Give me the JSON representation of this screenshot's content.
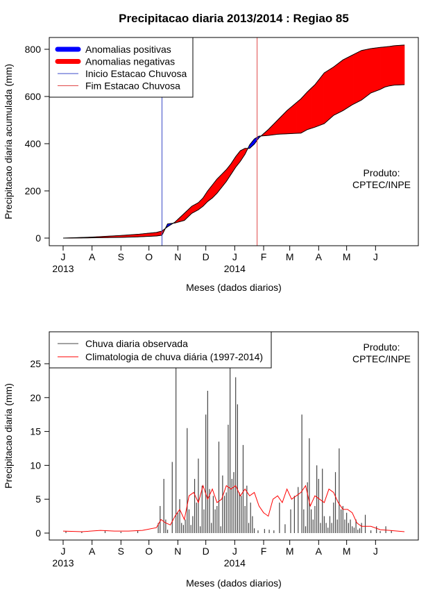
{
  "title": "Precipitacao diaria 2013/2014 : Regiao 85",
  "chart_data": [
    {
      "type": "area",
      "ylabel": "Precipitacao diaria acumulada (mm)",
      "xlabel": "Meses (dados diarios)",
      "ylim": [
        0,
        800
      ],
      "yticks": [
        0,
        200,
        400,
        600,
        800
      ],
      "month_labels": [
        "J",
        "A",
        "S",
        "O",
        "N",
        "D",
        "J",
        "F",
        "M",
        "A",
        "M",
        "J"
      ],
      "year_labels": [
        "2013",
        "2014"
      ],
      "annotation": [
        "Produto:",
        "CPTEC/INPE"
      ],
      "legend": [
        {
          "label": "Anomalias positivas",
          "color": "#0000ff",
          "style": "thick"
        },
        {
          "label": "Anomalias negativas",
          "color": "#ff0000",
          "style": "thick"
        },
        {
          "label": "Inicio Estacao Chuvosa",
          "color": "#3b4bc8",
          "style": "thin"
        },
        {
          "label": "Fim Estacao Chuvosa",
          "color": "#e04848",
          "style": "thin"
        }
      ],
      "rainy_season_start_day": 106,
      "rainy_season_end_day": 208,
      "day_count": 366,
      "observed_cumulative": {
        "day": [
          0,
          30,
          62,
          80,
          100,
          106,
          112,
          120,
          130,
          138,
          145,
          150,
          155,
          160,
          165,
          170,
          175,
          180,
          185,
          190,
          195,
          200,
          205,
          210,
          220,
          230,
          240,
          255,
          262,
          270,
          280,
          290,
          300,
          310,
          320,
          330,
          340,
          345,
          350,
          355,
          366
        ],
        "value": [
          0,
          1,
          3,
          5,
          9,
          12,
          60,
          64,
          75,
          105,
          120,
          135,
          155,
          170,
          190,
          215,
          240,
          270,
          300,
          325,
          355,
          395,
          420,
          432,
          435,
          440,
          442,
          445,
          460,
          470,
          485,
          520,
          540,
          565,
          585,
          615,
          630,
          640,
          645,
          648,
          650
        ]
      },
      "climatology_cumulative": {
        "day": [
          0,
          30,
          62,
          80,
          100,
          106,
          112,
          120,
          130,
          138,
          145,
          150,
          155,
          160,
          165,
          170,
          175,
          180,
          185,
          190,
          195,
          200,
          205,
          210,
          220,
          230,
          240,
          255,
          262,
          270,
          280,
          290,
          300,
          310,
          320,
          330,
          340,
          345,
          350,
          355,
          366
        ],
        "value": [
          0,
          4,
          11,
          16,
          24,
          30,
          48,
          68,
          105,
          135,
          150,
          170,
          200,
          225,
          250,
          270,
          290,
          315,
          345,
          370,
          380,
          380,
          398,
          425,
          460,
          500,
          540,
          590,
          620,
          650,
          700,
          725,
          755,
          775,
          795,
          803,
          808,
          810,
          812,
          815,
          818
        ]
      }
    },
    {
      "type": "bar",
      "ylabel": "Precipitacao diaria (mm)",
      "xlabel": "Meses (dados diarios)",
      "ylim": [
        0,
        28
      ],
      "yticks": [
        0,
        5,
        10,
        15,
        20,
        25
      ],
      "month_labels": [
        "J",
        "A",
        "S",
        "O",
        "N",
        "D",
        "J",
        "F",
        "M",
        "A",
        "M",
        "J"
      ],
      "year_labels": [
        "2013",
        "2014"
      ],
      "annotation": [
        "Produto:",
        "CPTEC/INPE"
      ],
      "legend": [
        {
          "label": "Chuva diaria observada",
          "color": "#444444",
          "style": "thin"
        },
        {
          "label": "Climatologia de chuva diária (1997-2014)",
          "color": "#ff0000",
          "style": "thin"
        }
      ],
      "observed_daily": {
        "day": [
          3,
          20,
          45,
          62,
          80,
          102,
          104,
          108,
          110,
          112,
          117,
          121,
          123,
          125,
          127,
          129,
          131,
          133,
          135,
          137,
          139,
          141,
          143,
          145,
          147,
          149,
          151,
          153,
          155,
          157,
          159,
          161,
          163,
          165,
          167,
          169,
          171,
          173,
          175,
          177,
          179,
          181,
          183,
          185,
          187,
          189,
          191,
          193,
          195,
          197,
          199,
          201,
          203,
          205,
          209,
          216,
          221,
          226,
          232,
          238,
          244,
          248,
          252,
          256,
          258,
          260,
          262,
          264,
          266,
          268,
          270,
          272,
          274,
          276,
          278,
          280,
          282,
          284,
          286,
          288,
          290,
          292,
          294,
          296,
          298,
          300,
          302,
          304,
          306,
          308,
          310,
          312,
          314,
          316,
          318,
          320,
          324,
          330,
          336,
          340,
          346,
          352
        ],
        "value": [
          0.3,
          0.2,
          0.3,
          0.2,
          0.4,
          1.5,
          4.0,
          8.0,
          2.0,
          0.5,
          10.5,
          27.0,
          3.0,
          5.0,
          1.5,
          1.2,
          2.0,
          15.5,
          3.5,
          1.2,
          2.5,
          8.0,
          4.5,
          11.0,
          1.0,
          7.0,
          3.5,
          17.5,
          21.0,
          6.5,
          1.5,
          5.5,
          3.5,
          4.0,
          13.5,
          1.0,
          8.5,
          5.5,
          6.0,
          16.0,
          24.5,
          8.0,
          9.0,
          23.0,
          19.0,
          6.0,
          5.5,
          13.0,
          4.0,
          7.0,
          1.5,
          4.5,
          2.5,
          0.7,
          0.4,
          0.6,
          0.5,
          0.4,
          4.5,
          1.3,
          3.5,
          5.5,
          6.8,
          17.5,
          3.5,
          1.0,
          7.5,
          14.0,
          3.5,
          2.0,
          4.0,
          10.0,
          8.0,
          1.5,
          9.5,
          2.5,
          1.5,
          0.8,
          2.5,
          1.5,
          4.5,
          9.0,
          2.0,
          12.5,
          3.5,
          4.0,
          2.0,
          3.0,
          1.5,
          2.0,
          1.0,
          0.8,
          2.0,
          0.5,
          0.7,
          1.5,
          2.7,
          0.4,
          1.0,
          0.3,
          1.0,
          0.4
        ]
      },
      "climatology_daily": {
        "day": [
          0,
          20,
          40,
          55,
          70,
          85,
          100,
          105,
          110,
          115,
          120,
          125,
          130,
          135,
          140,
          145,
          150,
          155,
          160,
          165,
          170,
          175,
          180,
          185,
          190,
          195,
          200,
          205,
          210,
          215,
          220,
          225,
          230,
          235,
          240,
          245,
          250,
          255,
          260,
          265,
          270,
          275,
          280,
          285,
          290,
          295,
          300,
          305,
          310,
          315,
          320,
          330,
          340,
          350,
          366
        ],
        "value": [
          0.3,
          0.2,
          0.4,
          0.3,
          0.3,
          0.4,
          0.8,
          2.0,
          1.5,
          1.2,
          2.5,
          3.5,
          2.0,
          5.5,
          6.0,
          4.5,
          7.0,
          5.0,
          6.5,
          4.5,
          5.0,
          7.0,
          6.5,
          7.0,
          5.5,
          6.5,
          5.5,
          6.0,
          4.0,
          3.0,
          2.5,
          5.0,
          5.5,
          4.5,
          6.5,
          5.0,
          5.5,
          6.0,
          7.0,
          4.0,
          5.5,
          5.0,
          4.5,
          6.5,
          6.0,
          4.5,
          3.5,
          3.5,
          3.0,
          1.5,
          1.0,
          1.0,
          0.5,
          0.4,
          0.2
        ]
      }
    }
  ]
}
